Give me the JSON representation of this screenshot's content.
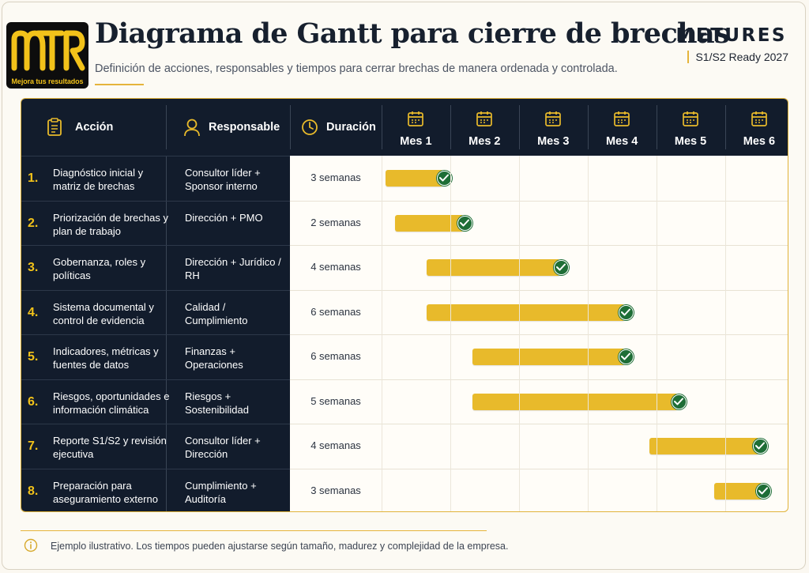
{
  "header": {
    "title": "Diagrama de Gantt para cierre de brechas",
    "subtitle": "Definición de acciones, responsables y tiempos para cerrar brechas de manera ordenada y controlada.",
    "brand": "METURES",
    "brand_sub": "S1/S2 Ready 2027",
    "logo_text": "MTR",
    "logo_tagline": "Mejora tus resultados"
  },
  "columns": {
    "action": "Acción",
    "owner": "Responsable",
    "duration": "Duración",
    "months": [
      "Mes 1",
      "Mes 2",
      "Mes 3",
      "Mes 4",
      "Mes 5",
      "Mes 6"
    ]
  },
  "rows": [
    {
      "num": "1.",
      "action": "Diagnóstico inicial y matriz de brechas",
      "owner": "Consultor líder + Sponsor interno",
      "duration": "3 semanas",
      "start_month": 0.06,
      "end_month": 0.9
    },
    {
      "num": "2.",
      "action": "Priorización de brechas y plan de trabajo",
      "owner": "Dirección + PMO",
      "duration": "2 semanas",
      "start_month": 0.2,
      "end_month": 1.2
    },
    {
      "num": "3.",
      "action": "Gobernanza, roles y políticas",
      "owner": "Dirección + Jurídico / RH",
      "duration": "4 semanas",
      "start_month": 0.66,
      "end_month": 2.6
    },
    {
      "num": "4.",
      "action": "Sistema documental y control de evidencia",
      "owner": "Calidad / Cumplimiento",
      "duration": "6 semanas",
      "start_month": 0.66,
      "end_month": 3.55
    },
    {
      "num": "5.",
      "action": "Indicadores, métricas y fuentes de datos",
      "owner": "Finanzas + Operaciones",
      "duration": "6 semanas",
      "start_month": 1.32,
      "end_month": 3.55
    },
    {
      "num": "6.",
      "action": "Riesgos, oportunidades e información climática",
      "owner": "Riesgos + Sostenibilidad",
      "duration": "5 semanas",
      "start_month": 1.32,
      "end_month": 4.32
    },
    {
      "num": "7.",
      "action": "Reporte S1/S2 y revisión ejecutiva",
      "owner": "Consultor líder + Dirección",
      "duration": "4 semanas",
      "start_month": 3.9,
      "end_month": 5.5
    },
    {
      "num": "8.",
      "action": "Preparación para aseguramiento externo",
      "owner": "Cumplimiento + Auditoría",
      "duration": "3 semanas",
      "start_month": 4.85,
      "end_month": 5.55
    }
  ],
  "footnote": "Ejemplo ilustrativo. Los tiempos pueden ajustarse según tamaño, madurez y complejidad de la empresa.",
  "colors": {
    "bar": "#e8ba2b",
    "check": "#1e6e36",
    "header_bg": "#121c2c",
    "accent": "#f2c21a"
  }
}
